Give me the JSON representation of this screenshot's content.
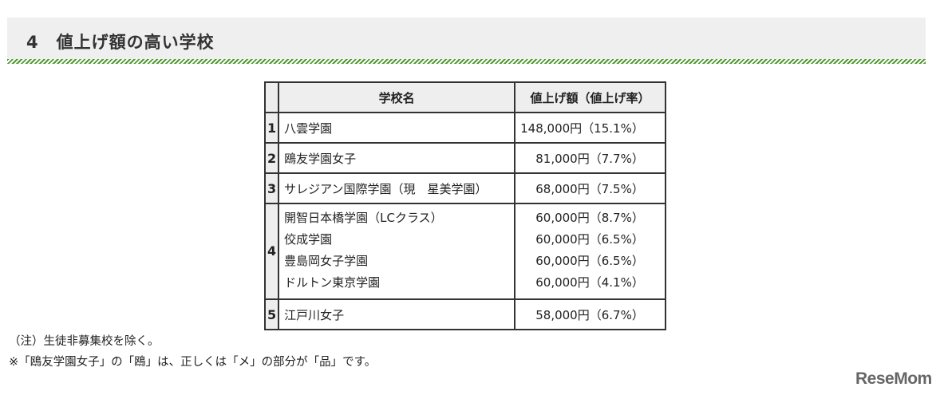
{
  "header": {
    "title": "4　値上げ額の高い学校"
  },
  "table": {
    "columns": {
      "rank": "",
      "name": "学校名",
      "amount": "値上げ額（値上げ率）"
    },
    "rows": [
      {
        "rank": "1",
        "schools": [
          {
            "name": "八雲学園",
            "amount": "148,000円（15.1%）"
          }
        ]
      },
      {
        "rank": "2",
        "schools": [
          {
            "name": "鴎友学園女子",
            "amount": "81,000円（7.7%）"
          }
        ]
      },
      {
        "rank": "3",
        "schools": [
          {
            "name": "サレジアン国際学園（現　星美学園）",
            "amount": "68,000円（7.5%）"
          }
        ]
      },
      {
        "rank": "4",
        "schools": [
          {
            "name": "開智日本橋学園（LCクラス）",
            "amount": "60,000円（8.7%）"
          },
          {
            "name": "佼成学園",
            "amount": "60,000円（6.5%）"
          },
          {
            "name": "豊島岡女子学園",
            "amount": "60,000円（6.5%）"
          },
          {
            "name": "ドルトン東京学園",
            "amount": "60,000円（4.1%）"
          }
        ]
      },
      {
        "rank": "5",
        "schools": [
          {
            "name": "江戸川女子",
            "amount": "58,000円（6.7%）"
          }
        ]
      }
    ]
  },
  "notes": [
    "（注）生徒非募集校を除く。",
    "※「鴎友学園女子」の「鴎」は、正しくは「メ」の部分が「品」です。"
  ],
  "logo": {
    "text": "ReseMom"
  }
}
